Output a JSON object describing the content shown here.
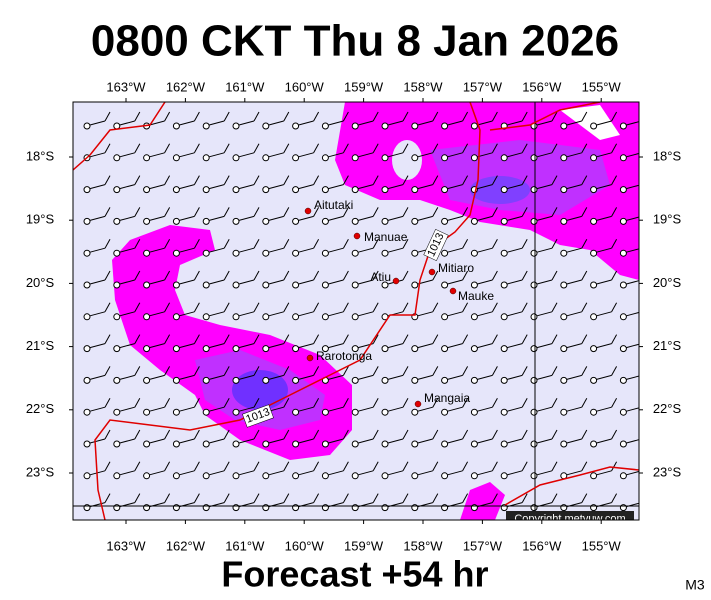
{
  "header": {
    "title": "0800 CKT Thu 8 Jan 2026"
  },
  "map": {
    "lon_labels": [
      "163°W",
      "162°W",
      "161°W",
      "160°W",
      "159°W",
      "158°W",
      "157°W",
      "156°W",
      "155°W"
    ],
    "lat_labels": [
      "18°S",
      "19°S",
      "20°S",
      "21°S",
      "22°S",
      "23°S"
    ],
    "places": [
      {
        "label": "Aitutaki"
      },
      {
        "label": "Manuae"
      },
      {
        "label": "Atiu"
      },
      {
        "label": "Mitiaro"
      },
      {
        "label": "Mauke"
      },
      {
        "label": "Rarotonga"
      },
      {
        "label": "Mangaia"
      }
    ],
    "isobar_labels": [
      "1013",
      "1013"
    ],
    "copyright": "Copyright metvuw.com"
  },
  "footer": {
    "forecast": "Forecast +54 hr",
    "code": "M3"
  }
}
